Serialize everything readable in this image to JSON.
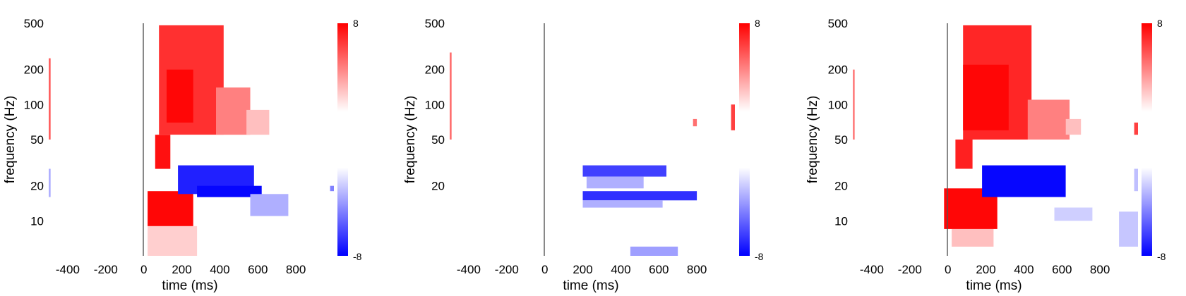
{
  "chart_data": [
    {
      "type": "heatmap",
      "xlabel": "time (ms)",
      "ylabel": "frequency (Hz)",
      "x_ticks": [
        -400,
        -200,
        0,
        200,
        400,
        600,
        800
      ],
      "y_ticks": [
        10,
        20,
        50,
        100,
        200,
        500
      ],
      "xlim": [
        -500,
        1000
      ],
      "ylim": [
        5,
        500
      ],
      "y_scale": "log",
      "event_line_x": 0,
      "colorbar": {
        "min": -8,
        "max": 8,
        "ticks": [
          "8",
          "-8"
        ]
      },
      "blobs": [
        {
          "t0": 80,
          "t1": 420,
          "f0": 55,
          "f1": 480,
          "v": 6.5
        },
        {
          "t0": 120,
          "t1": 260,
          "f0": 70,
          "f1": 200,
          "v": 7.8
        },
        {
          "t0": 380,
          "t1": 560,
          "f0": 55,
          "f1": 140,
          "v": 4.0
        },
        {
          "t0": 540,
          "t1": 660,
          "f0": 55,
          "f1": 90,
          "v": 2.0
        },
        {
          "t0": 60,
          "t1": 140,
          "f0": 28,
          "f1": 55,
          "v": 7.5
        },
        {
          "t0": 20,
          "t1": 260,
          "f0": 9,
          "f1": 18,
          "v": 7.8
        },
        {
          "t0": 20,
          "t1": 280,
          "f0": 5,
          "f1": 9,
          "v": 1.5
        },
        {
          "t0": 180,
          "t1": 580,
          "f0": 17,
          "f1": 30,
          "v": -7.0
        },
        {
          "t0": 280,
          "t1": 620,
          "f0": 16,
          "f1": 20,
          "v": -7.8
        },
        {
          "t0": 560,
          "t1": 760,
          "f0": 11,
          "f1": 17,
          "v": -2.5
        },
        {
          "t0": -500,
          "t1": -490,
          "f0": 50,
          "f1": 250,
          "v": 5.0
        },
        {
          "t0": -500,
          "t1": -490,
          "f0": 16,
          "f1": 28,
          "v": -2.5
        },
        {
          "t0": 980,
          "t1": 1000,
          "f0": 18,
          "f1": 20,
          "v": -4.0
        }
      ]
    },
    {
      "type": "heatmap",
      "xlabel": "time (ms)",
      "ylabel": "frequency (Hz)",
      "x_ticks": [
        -400,
        -200,
        0,
        200,
        400,
        600,
        800
      ],
      "y_ticks": [
        20,
        50,
        100,
        200,
        500
      ],
      "xlim": [
        -500,
        1000
      ],
      "ylim": [
        5,
        500
      ],
      "y_scale": "log",
      "event_line_x": 0,
      "colorbar": {
        "min": -8,
        "max": 8,
        "ticks": [
          "8",
          "-8"
        ]
      },
      "blobs": [
        {
          "t0": 200,
          "t1": 640,
          "f0": 24,
          "f1": 30,
          "v": -6.0
        },
        {
          "t0": 220,
          "t1": 520,
          "f0": 19,
          "f1": 24,
          "v": -2.5
        },
        {
          "t0": 200,
          "t1": 800,
          "f0": 15,
          "f1": 18,
          "v": -6.5
        },
        {
          "t0": 200,
          "t1": 620,
          "f0": 13,
          "f1": 15,
          "v": -2.5
        },
        {
          "t0": 450,
          "t1": 700,
          "f0": 5,
          "f1": 6,
          "v": -3.0
        },
        {
          "t0": 780,
          "t1": 800,
          "f0": 65,
          "f1": 75,
          "v": 4.5
        },
        {
          "t0": 980,
          "t1": 1000,
          "f0": 60,
          "f1": 100,
          "v": 6.0
        },
        {
          "t0": -500,
          "t1": -490,
          "f0": 50,
          "f1": 280,
          "v": 4.5
        }
      ]
    },
    {
      "type": "heatmap",
      "xlabel": "time (ms)",
      "ylabel": "frequency (Hz)",
      "x_ticks": [
        -400,
        -200,
        0,
        200,
        400,
        600,
        800
      ],
      "y_ticks": [
        10,
        20,
        50,
        100,
        200,
        500
      ],
      "xlim": [
        -500,
        1000
      ],
      "ylim": [
        5,
        500
      ],
      "y_scale": "log",
      "event_line_x": 0,
      "colorbar": {
        "min": -8,
        "max": 8,
        "ticks": [
          "8",
          "-8"
        ]
      },
      "blobs": [
        {
          "t0": 80,
          "t1": 440,
          "f0": 50,
          "f1": 480,
          "v": 6.8
        },
        {
          "t0": 80,
          "t1": 320,
          "f0": 60,
          "f1": 220,
          "v": 7.8
        },
        {
          "t0": 420,
          "t1": 640,
          "f0": 50,
          "f1": 110,
          "v": 4.0
        },
        {
          "t0": 620,
          "t1": 700,
          "f0": 55,
          "f1": 75,
          "v": 2.0
        },
        {
          "t0": 40,
          "t1": 130,
          "f0": 28,
          "f1": 50,
          "v": 7.0
        },
        {
          "t0": -20,
          "t1": 260,
          "f0": 8.5,
          "f1": 19,
          "v": 7.8
        },
        {
          "t0": 20,
          "t1": 240,
          "f0": 6,
          "f1": 8.5,
          "v": 2.0
        },
        {
          "t0": 180,
          "t1": 620,
          "f0": 16,
          "f1": 30,
          "v": -7.8
        },
        {
          "t0": 560,
          "t1": 760,
          "f0": 10,
          "f1": 13,
          "v": -1.5
        },
        {
          "t0": 900,
          "t1": 1000,
          "f0": 6,
          "f1": 12,
          "v": -1.8
        },
        {
          "t0": 980,
          "t1": 1000,
          "f0": 55,
          "f1": 70,
          "v": 6.0
        },
        {
          "t0": 980,
          "t1": 1000,
          "f0": 18,
          "f1": 28,
          "v": -2.0
        },
        {
          "t0": -500,
          "t1": -490,
          "f0": 50,
          "f1": 200,
          "v": 4.0
        }
      ]
    }
  ]
}
